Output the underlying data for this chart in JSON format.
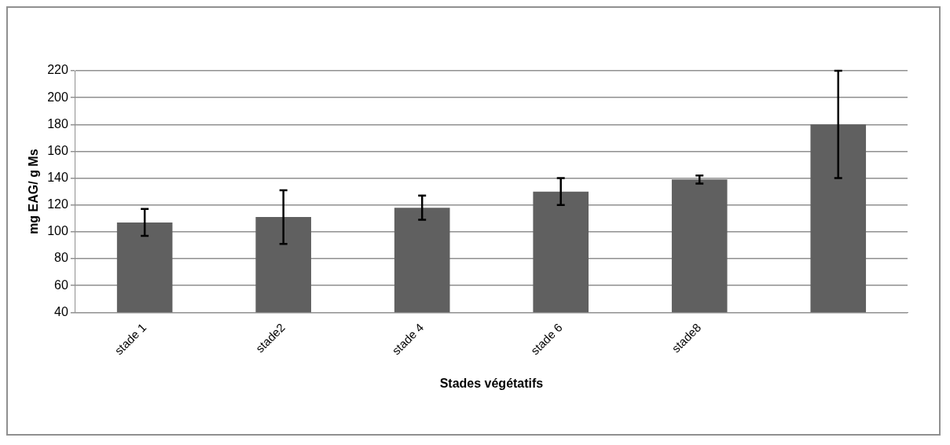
{
  "chart_data": {
    "type": "bar",
    "xlabel": "Stades végétatifs",
    "ylabel": "mg EAG/ g Ms",
    "categories": [
      "stade 1",
      "stade2",
      "stade 4",
      "stade 6",
      "stade8",
      null
    ],
    "values": [
      107,
      111,
      118,
      130,
      139,
      180
    ],
    "errors": [
      10,
      20,
      9,
      10,
      3,
      40
    ],
    "color": "#606060",
    "ylim": [
      40,
      220
    ],
    "yticks": [
      40,
      60,
      80,
      100,
      120,
      140,
      160,
      180,
      200,
      220
    ],
    "grid": "y",
    "legend": false
  }
}
